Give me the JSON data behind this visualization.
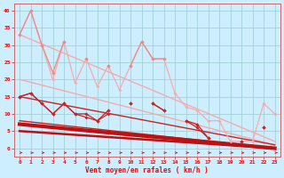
{
  "xlabel": "Vent moyen/en rafales ( km/h )",
  "background_color": "#cceeff",
  "grid_color": "#99cccc",
  "x": [
    0,
    1,
    2,
    3,
    4,
    5,
    6,
    7,
    8,
    9,
    10,
    11,
    12,
    13,
    14,
    15,
    16,
    17,
    18,
    19,
    20,
    21,
    22,
    23
  ],
  "line_pink_wiggly": [
    33,
    40,
    30,
    22,
    31,
    null,
    26,
    null,
    24,
    null,
    24,
    31,
    26,
    26,
    null,
    null,
    null,
    null,
    null,
    null,
    null,
    null,
    null,
    null
  ],
  "line_light_full": [
    33,
    40,
    30,
    20,
    31,
    19,
    26,
    18,
    24,
    17,
    24,
    31,
    26,
    26,
    16,
    12,
    11,
    8,
    8,
    2,
    2,
    2,
    13,
    10
  ],
  "line_red_wiggly": [
    15,
    16,
    13,
    10,
    13,
    10,
    10,
    8,
    11,
    null,
    13,
    null,
    13,
    11,
    null,
    8,
    7,
    3,
    null,
    null,
    2,
    null,
    6,
    null
  ],
  "line_red_wiggly2": [
    15,
    16,
    13,
    10,
    13,
    10,
    9,
    8,
    10,
    null,
    13,
    null,
    13,
    11,
    null,
    8,
    6,
    3,
    null,
    null,
    2,
    null,
    6,
    null
  ],
  "trend_light1": [
    33,
    2
  ],
  "trend_light2": [
    20,
    1
  ],
  "trend_red1": [
    15,
    1
  ],
  "trend_red2": [
    8,
    0
  ],
  "trend_bold_red": [
    7,
    0
  ],
  "ylim": [
    -2.5,
    42
  ],
  "xlim": [
    -0.5,
    23.5
  ],
  "light_pink": "#f8aaaa",
  "medium_pink": "#ee8888",
  "red": "#cc2222",
  "dark_red": "#bb1111"
}
